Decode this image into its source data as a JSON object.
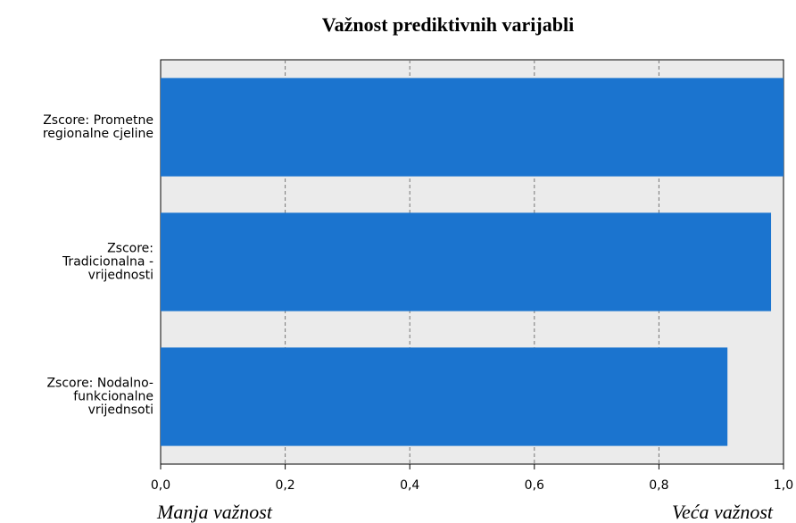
{
  "chart_data": {
    "type": "bar",
    "orientation": "horizontal",
    "title": "Važnost prediktivnih varijabli",
    "categories": [
      "Zscore:  Prometne\nregionalne cjeline",
      "Zscore:\nTradicionalna -\nvrijednosti",
      "Zscore: Nodalno-\nfunkcionalne\nvrijednsoti"
    ],
    "values": [
      1.0,
      0.98,
      0.91
    ],
    "color": "#1b74cf",
    "xlim": [
      0,
      1
    ],
    "xticks": [
      {
        "value": 0,
        "label": "0,0"
      },
      {
        "value": 0.2,
        "label": "0,2"
      },
      {
        "value": 0.4,
        "label": "0,4"
      },
      {
        "value": 0.6,
        "label": "0,6"
      },
      {
        "value": 0.8,
        "label": "0,8"
      },
      {
        "value": 1,
        "label": "1,0"
      }
    ],
    "grid": true,
    "x_label_left": "Manja važnost",
    "x_label_right": "Veća važnost"
  }
}
